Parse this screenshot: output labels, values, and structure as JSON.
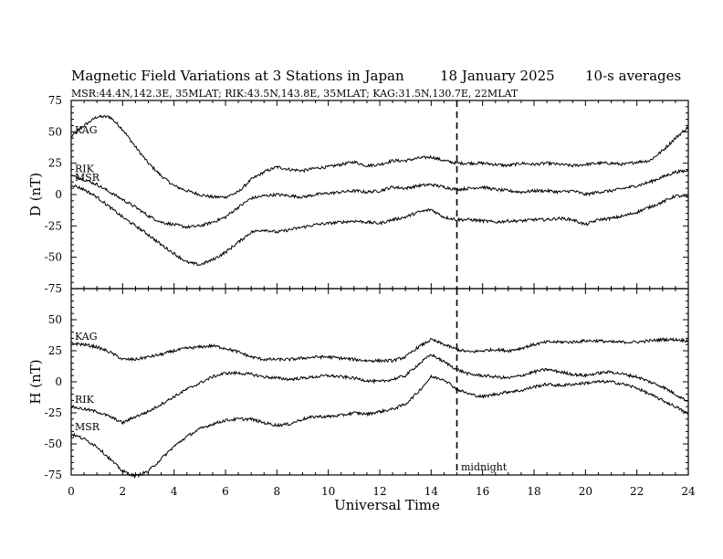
{
  "chart_data": {
    "type": "line",
    "title": "Magnetic Field Variations at 3 Stations in Japan",
    "date": "18 January  2025",
    "averaging": "10-s averages",
    "subtitle": "MSR:44.4N,142.3E, 35MLAT;   RIK:43.5N,143.8E, 35MLAT;   KAG:31.5N,130.7E, 22MLAT",
    "xlabel": "Universal Time",
    "xlim": [
      0,
      24
    ],
    "xticks": [
      "0",
      "2",
      "4",
      "6",
      "8",
      "10",
      "12",
      "14",
      "16",
      "18",
      "20",
      "22",
      "24"
    ],
    "annotation": {
      "x": 15,
      "label": "midnight"
    },
    "panels": [
      {
        "ylabel": "D (nT)",
        "ylim": [
          -75,
          75
        ],
        "yticks": [
          "75",
          "50",
          "25",
          "0",
          "-25",
          "-50",
          "-75"
        ],
        "series": [
          {
            "name": "KAG",
            "x": [
              0,
              0.5,
              1,
              1.5,
              2,
              2.5,
              3,
              3.5,
              4,
              4.5,
              5,
              5.5,
              6,
              6.5,
              7,
              7.5,
              8,
              8.5,
              9,
              9.5,
              10,
              10.5,
              11,
              11.5,
              12,
              12.5,
              13,
              13.5,
              14,
              14.5,
              15,
              15.5,
              16,
              16.5,
              17,
              17.5,
              18,
              18.5,
              19,
              19.5,
              20,
              20.5,
              21,
              21.5,
              22,
              22.5,
              23,
              23.5,
              24
            ],
            "y": [
              46,
              55,
              62,
              62,
              52,
              38,
              25,
              15,
              7,
              3,
              0,
              -2,
              -2,
              2,
              12,
              18,
              22,
              20,
              19,
              21,
              22,
              24,
              26,
              23,
              24,
              27,
              27,
              29,
              30,
              27,
              25,
              25,
              25,
              24,
              23,
              25,
              24,
              25,
              24,
              23,
              24,
              25,
              25,
              24,
              26,
              27,
              35,
              45,
              54
            ]
          },
          {
            "name": "RIK",
            "x": [
              0,
              0.5,
              1,
              1.5,
              2,
              2.5,
              3,
              3.5,
              4,
              4.5,
              5,
              5.5,
              6,
              6.5,
              7,
              7.5,
              8,
              8.5,
              9,
              9.5,
              10,
              10.5,
              11,
              11.5,
              12,
              12.5,
              13,
              13.5,
              14,
              14.5,
              15,
              15.5,
              16,
              16.5,
              17,
              17.5,
              18,
              18.5,
              19,
              19.5,
              20,
              20.5,
              21,
              21.5,
              22,
              22.5,
              23,
              23.5,
              24
            ],
            "y": [
              15,
              12,
              8,
              2,
              -4,
              -10,
              -17,
              -22,
              -24,
              -26,
              -25,
              -22,
              -18,
              -10,
              -3,
              -1,
              0,
              -1,
              -2,
              0,
              1,
              2,
              3,
              2,
              3,
              6,
              5,
              7,
              8,
              6,
              4,
              5,
              6,
              4,
              3,
              2,
              3,
              3,
              2,
              3,
              0,
              2,
              3,
              5,
              7,
              10,
              14,
              18,
              19
            ]
          },
          {
            "name": "MSR",
            "x": [
              0,
              0.5,
              1,
              1.5,
              2,
              2.5,
              3,
              3.5,
              4,
              4.5,
              5,
              5.5,
              6,
              6.5,
              7,
              7.5,
              8,
              8.5,
              9,
              9.5,
              10,
              10.5,
              11,
              11.5,
              12,
              12.5,
              13,
              13.5,
              14,
              14.5,
              15,
              15.5,
              16,
              16.5,
              17,
              17.5,
              18,
              18.5,
              19,
              19.5,
              20,
              20.5,
              21,
              21.5,
              22,
              22.5,
              23,
              23.5,
              24
            ],
            "y": [
              8,
              4,
              -2,
              -10,
              -18,
              -25,
              -32,
              -40,
              -47,
              -54,
              -56,
              -52,
              -46,
              -38,
              -30,
              -28,
              -30,
              -28,
              -26,
              -24,
              -23,
              -22,
              -21,
              -22,
              -23,
              -20,
              -18,
              -14,
              -12,
              -18,
              -20,
              -20,
              -21,
              -22,
              -21,
              -21,
              -20,
              -20,
              -19,
              -20,
              -24,
              -20,
              -19,
              -17,
              -14,
              -10,
              -6,
              -1,
              -2
            ]
          }
        ]
      },
      {
        "ylabel": "H (nT)",
        "ylim": [
          -75,
          75
        ],
        "yticks": [
          "",
          "50",
          "25",
          "0",
          "-25",
          "-50",
          "-75"
        ],
        "series": [
          {
            "name": "KAG",
            "x": [
              0,
              0.5,
              1,
              1.5,
              2,
              2.5,
              3,
              3.5,
              4,
              4.5,
              5,
              5.5,
              6,
              6.5,
              7,
              7.5,
              8,
              8.5,
              9,
              9.5,
              10,
              10.5,
              11,
              11.5,
              12,
              12.5,
              13,
              13.5,
              14,
              14.5,
              15,
              15.5,
              16,
              16.5,
              17,
              17.5,
              18,
              18.5,
              19,
              19.5,
              20,
              20.5,
              21,
              21.5,
              22,
              22.5,
              23,
              23.5,
              24
            ],
            "y": [
              31,
              30,
              28,
              24,
              18,
              18,
              20,
              22,
              25,
              27,
              28,
              29,
              27,
              24,
              20,
              18,
              18,
              18,
              19,
              20,
              20,
              19,
              18,
              17,
              17,
              17,
              20,
              28,
              34,
              30,
              26,
              24,
              25,
              26,
              25,
              27,
              30,
              32,
              32,
              32,
              33,
              33,
              32,
              32,
              32,
              33,
              34,
              34,
              33
            ]
          },
          {
            "name": "RIK",
            "x": [
              0,
              0.5,
              1,
              1.5,
              2,
              2.5,
              3,
              3.5,
              4,
              4.5,
              5,
              5.5,
              6,
              6.5,
              7,
              7.5,
              8,
              8.5,
              9,
              9.5,
              10,
              10.5,
              11,
              11.5,
              12,
              12.5,
              13,
              13.5,
              14,
              14.5,
              15,
              15.5,
              16,
              16.5,
              17,
              17.5,
              18,
              18.5,
              19,
              19.5,
              20,
              20.5,
              21,
              21.5,
              22,
              22.5,
              23,
              23.5,
              24
            ],
            "y": [
              -20,
              -22,
              -24,
              -28,
              -33,
              -28,
              -24,
              -18,
              -12,
              -6,
              -1,
              4,
              7,
              7,
              6,
              4,
              3,
              2,
              3,
              4,
              5,
              4,
              3,
              1,
              0,
              2,
              5,
              14,
              22,
              16,
              10,
              6,
              5,
              4,
              3,
              5,
              8,
              10,
              8,
              6,
              5,
              7,
              8,
              6,
              4,
              0,
              -4,
              -10,
              -16
            ]
          },
          {
            "name": "MSR",
            "x": [
              0,
              0.5,
              1,
              1.5,
              2,
              2.5,
              3,
              3.5,
              4,
              4.5,
              5,
              5.5,
              6,
              6.5,
              7,
              7.5,
              8,
              8.5,
              9,
              9.5,
              10,
              10.5,
              11,
              11.5,
              12,
              12.5,
              13,
              13.5,
              14,
              14.5,
              15,
              15.5,
              16,
              16.5,
              17,
              17.5,
              18,
              18.5,
              19,
              19.5,
              20,
              20.5,
              21,
              21.5,
              22,
              22.5,
              23,
              23.5,
              24
            ],
            "y": [
              -42,
              -46,
              -52,
              -62,
              -72,
              -76,
              -72,
              -62,
              -52,
              -44,
              -38,
              -34,
              -31,
              -30,
              -30,
              -33,
              -35,
              -34,
              -30,
              -28,
              -28,
              -27,
              -25,
              -26,
              -24,
              -22,
              -18,
              -8,
              4,
              2,
              -6,
              -10,
              -12,
              -10,
              -8,
              -7,
              -4,
              -2,
              -3,
              -2,
              -1,
              0,
              0,
              -2,
              -5,
              -10,
              -15,
              -20,
              -26
            ]
          }
        ]
      }
    ]
  }
}
